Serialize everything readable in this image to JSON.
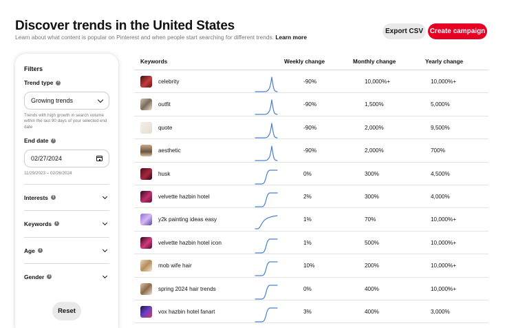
{
  "header": {
    "title": "Discover trends in the United States",
    "subtitle": "Learn about what content is popular on Pinterest and when people start searching for different trends.",
    "learn_more": "Learn more",
    "export_label": "Export CSV",
    "campaign_label": "Create campaign"
  },
  "filters": {
    "heading": "Filters",
    "trend_type_label": "Trend type",
    "trend_type_value": "Growing trends",
    "trend_type_help": "Trends with high growth in search volume within the last 90 days of your selected end date",
    "end_date_label": "End date",
    "end_date_value": "02/27/2024",
    "date_range": "11/29/2023 – 02/26/2024",
    "sections": [
      "Interests",
      "Keywords",
      "Age",
      "Gender"
    ],
    "reset_label": "Reset"
  },
  "table": {
    "columns": [
      "Keywords",
      "Weekly change",
      "Monthly change",
      "Yearly change"
    ],
    "rows": [
      {
        "keyword": "celebrity",
        "weekly": "-90%",
        "monthly": "10,000%+",
        "yearly": "10,000%+",
        "trend": "spike"
      },
      {
        "keyword": "outfit",
        "weekly": "-90%",
        "monthly": "1,500%",
        "yearly": "5,000%",
        "trend": "spike"
      },
      {
        "keyword": "quote",
        "weekly": "-90%",
        "monthly": "2,000%",
        "yearly": "9,500%",
        "trend": "spike"
      },
      {
        "keyword": "aesthetic",
        "weekly": "-90%",
        "monthly": "2,000%",
        "yearly": "700%",
        "trend": "spike"
      },
      {
        "keyword": "husk",
        "weekly": "0%",
        "monthly": "300%",
        "yearly": "4,500%",
        "trend": "step"
      },
      {
        "keyword": "velvette hazbin hotel",
        "weekly": "2%",
        "monthly": "300%",
        "yearly": "4,000%",
        "trend": "step"
      },
      {
        "keyword": "y2k painting ideas easy",
        "weekly": "1%",
        "monthly": "70%",
        "yearly": "10,000%+",
        "trend": "curve"
      },
      {
        "keyword": "velvette hazbin hotel icon",
        "weekly": "1%",
        "monthly": "500%",
        "yearly": "10,000%+",
        "trend": "step"
      },
      {
        "keyword": "mob wife hair",
        "weekly": "10%",
        "monthly": "200%",
        "yearly": "10,000%+",
        "trend": "step"
      },
      {
        "keyword": "spring 2024 hair trends",
        "weekly": "0%",
        "monthly": "400%",
        "yearly": "10,000%+",
        "trend": "step"
      },
      {
        "keyword": "vox hazbin hotel fanart",
        "weekly": "3%",
        "monthly": "400%",
        "yearly": "3,000%",
        "trend": "step"
      }
    ]
  },
  "colors": {
    "accent": "#e60023",
    "sparkline": "#4a7fd0"
  }
}
